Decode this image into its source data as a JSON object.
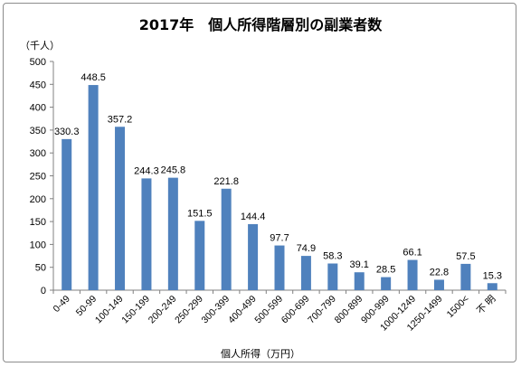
{
  "chart_data": {
    "type": "bar",
    "title": "2017年　個人所得階層別の副業者数",
    "ylabel": "（千人）",
    "xlabel": "個人所得（万円）",
    "ylim": [
      0,
      500
    ],
    "yticks": [
      0,
      50,
      100,
      150,
      200,
      250,
      300,
      350,
      400,
      450,
      500
    ],
    "grid": false,
    "bar_color": "#4f81bd",
    "categories": [
      "0-49",
      "50-99",
      "100-149",
      "150-199",
      "200-249",
      "250-299",
      "300-399",
      "400-499",
      "500-599",
      "600-699",
      "700-799",
      "800-899",
      "900-999",
      "1000-1249",
      "1250-1499",
      "1500<",
      "不 明"
    ],
    "values": [
      330.3,
      448.5,
      357.2,
      244.3,
      245.8,
      151.5,
      221.8,
      144.4,
      97.7,
      74.9,
      58.3,
      39.1,
      28.5,
      66.1,
      22.8,
      57.5,
      15.3
    ],
    "data_labels": [
      "330.3",
      "448.5",
      "357.2",
      "244.3",
      "245.8",
      "151.5",
      "221.8",
      "144.4",
      "97.7",
      "74.9",
      "58.3",
      "39.1",
      "28.5",
      "66.1",
      "22.8",
      "57.5",
      "15.3"
    ]
  }
}
